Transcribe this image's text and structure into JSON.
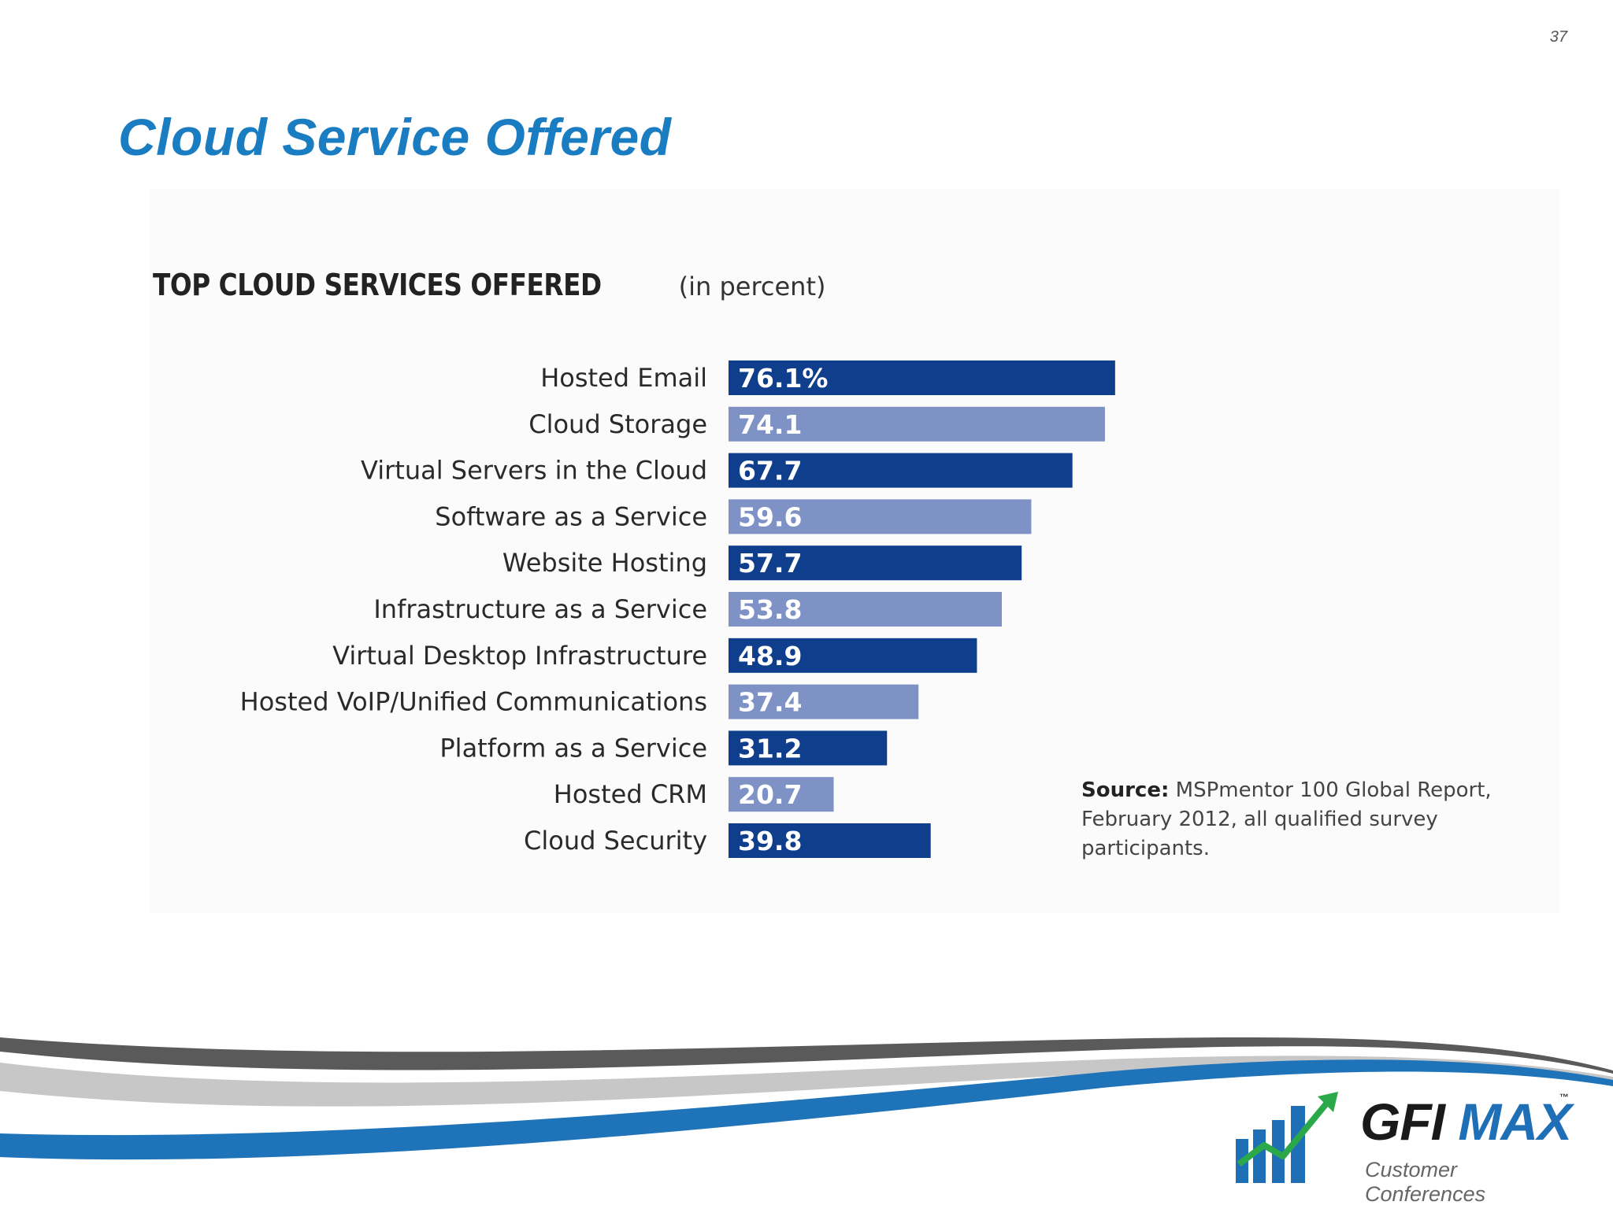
{
  "page_number": "37",
  "slide_title": "Cloud Service Offered",
  "source": {
    "label": "Source:",
    "text": "MSPmentor 100 Global Report, February 2012, all qualified survey participants."
  },
  "logo": {
    "brand_primary": "GFI",
    "brand_secondary": "MAX",
    "trademark": "™",
    "subtitle": "Customer Conferences"
  },
  "colors": {
    "title_blue": "#1a7cc1",
    "bar_dark": "#0f3f8c",
    "bar_light": "#7f92c6",
    "swoosh_blue": "#1f73b9",
    "swoosh_gray": "#9a9a9a",
    "logo_green": "#2aa84a"
  },
  "chart_data": {
    "type": "bar",
    "orientation": "horizontal",
    "title": "TOP CLOUD SERVICES OFFERED",
    "subtitle": "(in percent)",
    "categories": [
      "Hosted Email",
      "Cloud Storage",
      "Virtual Servers in the Cloud",
      "Software as a Service",
      "Website Hosting",
      "Infrastructure as a Service",
      "Virtual Desktop Infrastructure",
      "Hosted VoIP/Unified Communications",
      "Platform as a Service",
      "Hosted CRM",
      "Cloud Security"
    ],
    "values": [
      76.1,
      74.1,
      67.7,
      59.6,
      57.7,
      53.8,
      48.9,
      37.4,
      31.2,
      20.7,
      39.8
    ],
    "value_labels": [
      "76.1%",
      "74.1",
      "67.7",
      "59.6",
      "57.7",
      "53.8",
      "48.9",
      "37.4",
      "31.2",
      "20.7",
      "39.8"
    ],
    "xlim": [
      0,
      100
    ],
    "grid": false,
    "legend": "none"
  }
}
